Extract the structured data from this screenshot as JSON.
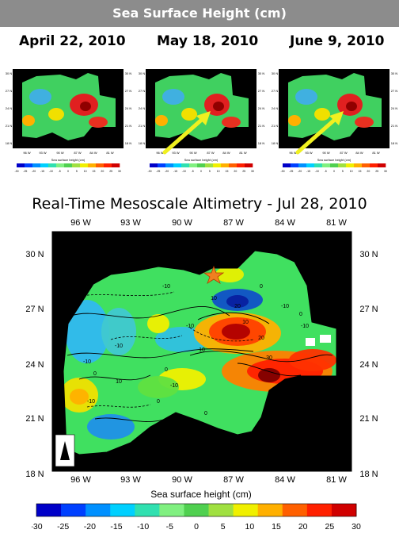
{
  "header": {
    "title": "Sea Surface Height (cm)"
  },
  "panels": [
    {
      "date": "April 22, 2010",
      "x_ticks": [
        "96 W",
        "93 W",
        "90 W",
        "87 W",
        "84 W",
        "81 W"
      ],
      "y_ticks": [
        "30 N",
        "27 N",
        "24 N",
        "21 N",
        "18 N"
      ],
      "cbar_label": "Sea surface height (cm)",
      "cbar_ticks": [
        "-30",
        "-25",
        "-20",
        "-15",
        "-10",
        "-5",
        "0",
        "5",
        "10",
        "15",
        "20",
        "25",
        "30"
      ],
      "has_arrow": false
    },
    {
      "date": "May 18, 2010",
      "x_ticks": [
        "96 W",
        "93 W",
        "90 W",
        "87 W",
        "84 W",
        "81 W"
      ],
      "y_ticks": [
        "30 N",
        "27 N",
        "24 N",
        "21 N",
        "18 N"
      ],
      "cbar_label": "Sea surface height (cm)",
      "cbar_ticks": [
        "-30",
        "-25",
        "-20",
        "-15",
        "-10",
        "-5",
        "0",
        "5",
        "10",
        "15",
        "20",
        "25",
        "30"
      ],
      "has_arrow": true
    },
    {
      "date": "June 9, 2010",
      "x_ticks": [
        "96 W",
        "93 W",
        "90 W",
        "87 W",
        "84 W",
        "81 W"
      ],
      "y_ticks": [
        "30 N",
        "27 N",
        "24 N",
        "21 N",
        "18 N"
      ],
      "cbar_label": "Sea surface height (cm)",
      "cbar_ticks": [
        "-30",
        "-25",
        "-20",
        "-15",
        "-10",
        "-5",
        "0",
        "5",
        "10",
        "15",
        "20",
        "25",
        "30"
      ],
      "has_arrow": true
    }
  ],
  "main_map": {
    "title": "Real-Time Mesoscale Altimetry - Jul 28, 2010",
    "x_ticks": [
      "96 W",
      "93 W",
      "90 W",
      "87 W",
      "84 W",
      "81 W"
    ],
    "y_ticks": [
      "30 N",
      "27 N",
      "24 N",
      "21 N",
      "18 N"
    ],
    "xlabel": "Sea surface height (cm)",
    "contour_labels": [
      "0",
      "-10",
      "-10",
      "-10",
      "10",
      "20",
      "30",
      "-10",
      "0",
      "-10",
      "10",
      "0",
      "-10",
      "0",
      "-10",
      "10",
      "0",
      "-10",
      "0",
      "10",
      "20",
      "0",
      "-10"
    ]
  },
  "colorbar": {
    "ticks": [
      "-30",
      "-25",
      "-20",
      "-15",
      "-10",
      "-5",
      "0",
      "5",
      "10",
      "15",
      "20",
      "25",
      "30"
    ],
    "colors": [
      "#0000c8",
      "#0040ff",
      "#0090ff",
      "#00d0ff",
      "#30e0b0",
      "#80f080",
      "#50d050",
      "#a0e040",
      "#f0f000",
      "#ffb000",
      "#ff6000",
      "#ff2000",
      "#d00000"
    ]
  },
  "legend_marker": "star-marker"
}
